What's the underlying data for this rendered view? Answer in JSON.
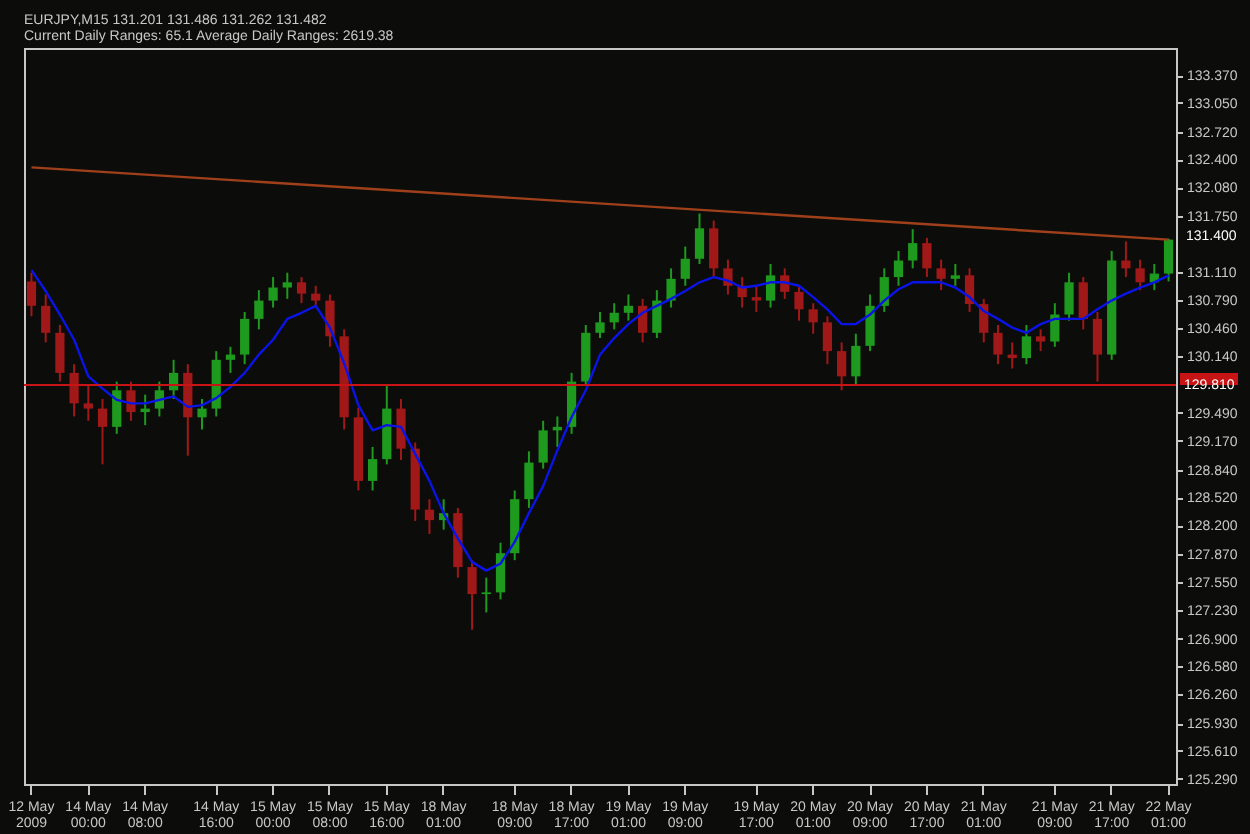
{
  "chart_data": {
    "type": "candlestick",
    "title": "EURJPY,M15  131.201 131.486 131.262 131.482",
    "subtitle": "Current Daily Ranges: 65.1   Average Daily Ranges: 2619.38",
    "categories": [
      "12 May 2009",
      null,
      null,
      null,
      "14 May 00:00",
      null,
      null,
      null,
      "14 May 08:00",
      null,
      null,
      null,
      null,
      "14 May 16:00",
      null,
      null,
      null,
      "15 May 00:00",
      null,
      null,
      null,
      "15 May 08:00",
      null,
      null,
      null,
      "15 May 16:00",
      null,
      null,
      null,
      "18 May 01:00",
      null,
      null,
      null,
      null,
      "18 May 09:00",
      null,
      null,
      null,
      "18 May 17:00",
      null,
      null,
      null,
      "19 May 01:00",
      null,
      null,
      null,
      "19 May 09:00",
      null,
      null,
      null,
      null,
      "19 May 17:00",
      null,
      null,
      null,
      "20 May 01:00",
      null,
      null,
      null,
      "20 May 09:00",
      null,
      null,
      null,
      "20 May 17:00",
      null,
      null,
      null,
      "21 May 01:00",
      null,
      null,
      null,
      null,
      "21 May 09:00",
      null,
      null,
      null,
      "21 May 17:00",
      null,
      null,
      null,
      "22 May 01:00"
    ],
    "ohlc": [
      [
        131.0,
        131.1,
        130.6,
        130.72
      ],
      [
        130.72,
        130.85,
        130.3,
        130.41
      ],
      [
        130.41,
        130.5,
        129.85,
        129.95
      ],
      [
        129.95,
        130.05,
        129.45,
        129.6
      ],
      [
        129.6,
        129.8,
        129.4,
        129.54
      ],
      [
        129.54,
        129.65,
        128.9,
        129.33
      ],
      [
        129.33,
        129.85,
        129.25,
        129.75
      ],
      [
        129.75,
        129.85,
        129.4,
        129.5
      ],
      [
        129.5,
        129.7,
        129.35,
        129.54
      ],
      [
        129.54,
        129.85,
        129.45,
        129.75
      ],
      [
        129.75,
        130.1,
        129.65,
        129.95
      ],
      [
        129.95,
        130.05,
        129.0,
        129.44
      ],
      [
        129.44,
        129.65,
        129.3,
        129.54
      ],
      [
        129.54,
        130.2,
        129.45,
        130.1
      ],
      [
        130.1,
        130.25,
        129.95,
        130.16
      ],
      [
        130.16,
        130.65,
        130.05,
        130.57
      ],
      [
        130.57,
        130.9,
        130.45,
        130.78
      ],
      [
        130.78,
        131.05,
        130.7,
        130.93
      ],
      [
        130.93,
        131.1,
        130.8,
        130.99
      ],
      [
        130.99,
        131.05,
        130.75,
        130.86
      ],
      [
        130.86,
        130.95,
        130.7,
        130.78
      ],
      [
        130.78,
        130.85,
        130.25,
        130.37
      ],
      [
        130.37,
        130.45,
        129.3,
        129.44
      ],
      [
        129.44,
        129.55,
        128.6,
        128.71
      ],
      [
        128.71,
        129.1,
        128.6,
        128.96
      ],
      [
        128.96,
        129.8,
        128.9,
        129.54
      ],
      [
        129.54,
        129.65,
        128.95,
        129.08
      ],
      [
        129.08,
        129.15,
        128.25,
        128.38
      ],
      [
        128.38,
        128.5,
        128.1,
        128.26
      ],
      [
        128.26,
        128.5,
        128.15,
        128.34
      ],
      [
        128.34,
        128.4,
        127.6,
        127.72
      ],
      [
        127.72,
        127.8,
        127.0,
        127.41
      ],
      [
        127.41,
        127.6,
        127.2,
        127.43
      ],
      [
        127.43,
        128.0,
        127.35,
        127.88
      ],
      [
        127.88,
        128.6,
        127.8,
        128.5
      ],
      [
        128.5,
        129.05,
        128.4,
        128.92
      ],
      [
        128.92,
        129.4,
        128.85,
        129.29
      ],
      [
        129.29,
        129.45,
        129.1,
        129.33
      ],
      [
        129.33,
        129.95,
        129.25,
        129.85
      ],
      [
        129.85,
        130.5,
        129.8,
        130.41
      ],
      [
        130.41,
        130.65,
        130.35,
        130.53
      ],
      [
        130.53,
        130.75,
        130.45,
        130.64
      ],
      [
        130.64,
        130.85,
        130.55,
        130.72
      ],
      [
        130.72,
        130.8,
        130.3,
        130.41
      ],
      [
        130.41,
        130.9,
        130.35,
        130.78
      ],
      [
        130.78,
        131.15,
        130.7,
        131.03
      ],
      [
        131.03,
        131.4,
        130.95,
        131.26
      ],
      [
        131.26,
        131.78,
        131.2,
        131.61
      ],
      [
        131.61,
        131.7,
        131.05,
        131.15
      ],
      [
        131.15,
        131.25,
        130.85,
        130.95
      ],
      [
        130.95,
        131.05,
        130.7,
        130.82
      ],
      [
        130.82,
        130.95,
        130.65,
        130.78
      ],
      [
        130.78,
        131.2,
        130.7,
        131.07
      ],
      [
        131.07,
        131.15,
        130.8,
        130.88
      ],
      [
        130.88,
        130.95,
        130.55,
        130.68
      ],
      [
        130.68,
        130.75,
        130.4,
        130.53
      ],
      [
        130.53,
        130.6,
        130.05,
        130.2
      ],
      [
        130.2,
        130.3,
        129.75,
        129.91
      ],
      [
        129.91,
        130.4,
        129.8,
        130.26
      ],
      [
        130.26,
        130.85,
        130.2,
        130.72
      ],
      [
        130.72,
        131.15,
        130.65,
        131.05
      ],
      [
        131.05,
        131.35,
        130.95,
        131.24
      ],
      [
        131.24,
        131.6,
        131.15,
        131.44
      ],
      [
        131.44,
        131.5,
        131.05,
        131.15
      ],
      [
        131.15,
        131.25,
        130.9,
        131.03
      ],
      [
        131.03,
        131.2,
        130.95,
        131.07
      ],
      [
        131.07,
        131.15,
        130.65,
        130.74
      ],
      [
        130.74,
        130.8,
        130.3,
        130.41
      ],
      [
        130.41,
        130.5,
        130.05,
        130.16
      ],
      [
        130.16,
        130.3,
        130.0,
        130.12
      ],
      [
        130.12,
        130.5,
        130.05,
        130.37
      ],
      [
        130.37,
        130.45,
        130.2,
        130.31
      ],
      [
        130.31,
        130.75,
        130.25,
        130.62
      ],
      [
        130.62,
        131.1,
        130.55,
        130.99
      ],
      [
        130.99,
        131.05,
        130.45,
        130.57
      ],
      [
        130.57,
        130.65,
        129.85,
        130.16
      ],
      [
        130.16,
        131.35,
        130.1,
        131.24
      ],
      [
        131.24,
        131.46,
        131.05,
        131.15
      ],
      [
        131.15,
        131.25,
        130.9,
        130.99
      ],
      [
        130.99,
        131.2,
        130.9,
        131.09
      ],
      [
        131.09,
        131.49,
        131.0,
        131.48
      ]
    ],
    "colors": [
      "#a01818",
      "#a01818",
      "#a01818",
      "#a01818",
      "#a01818",
      "#a01818",
      "#1e9a1e",
      "#a01818",
      "#1e9a1e",
      "#1e9a1e",
      "#1e9a1e",
      "#a01818",
      "#1e9a1e",
      "#1e9a1e",
      "#1e9a1e",
      "#1e9a1e",
      "#1e9a1e",
      "#1e9a1e",
      "#1e9a1e",
      "#a01818",
      "#a01818",
      "#a01818",
      "#a01818",
      "#a01818",
      "#1e9a1e",
      "#1e9a1e",
      "#a01818",
      "#a01818",
      "#a01818",
      "#1e9a1e",
      "#a01818",
      "#a01818",
      "#1e9a1e",
      "#1e9a1e",
      "#1e9a1e",
      "#1e9a1e",
      "#1e9a1e",
      "#1e9a1e",
      "#1e9a1e",
      "#1e9a1e",
      "#1e9a1e",
      "#1e9a1e",
      "#1e9a1e",
      "#a01818",
      "#1e9a1e",
      "#1e9a1e",
      "#1e9a1e",
      "#1e9a1e",
      "#a01818",
      "#a01818",
      "#a01818",
      "#a01818",
      "#1e9a1e",
      "#a01818",
      "#a01818",
      "#a01818",
      "#a01818",
      "#a01818",
      "#1e9a1e",
      "#1e9a1e",
      "#1e9a1e",
      "#1e9a1e",
      "#1e9a1e",
      "#a01818",
      "#a01818",
      "#1e9a1e",
      "#a01818",
      "#a01818",
      "#a01818",
      "#a01818",
      "#1e9a1e",
      "#a01818",
      "#1e9a1e",
      "#1e9a1e",
      "#a01818",
      "#a01818",
      "#1e9a1e",
      "#a01818",
      "#a01818",
      "#1e9a1e",
      "#1e9a1e"
    ],
    "series": [
      {
        "type": "line",
        "color": "#0a14e6",
        "values": [
          131.13,
          130.89,
          130.62,
          130.33,
          129.91,
          129.77,
          129.64,
          129.6,
          129.6,
          129.64,
          129.68,
          129.56,
          129.58,
          129.66,
          129.79,
          129.95,
          130.16,
          130.33,
          130.57,
          130.64,
          130.72,
          130.47,
          130.06,
          129.58,
          129.29,
          129.35,
          129.33,
          129.02,
          128.71,
          128.34,
          128.05,
          127.78,
          127.68,
          127.76,
          128.01,
          128.34,
          128.65,
          129.06,
          129.44,
          129.75,
          130.16,
          130.35,
          130.51,
          130.64,
          130.72,
          130.8,
          130.89,
          130.99,
          131.05,
          131.01,
          130.93,
          130.95,
          130.99,
          130.99,
          130.95,
          130.82,
          130.68,
          130.51,
          130.51,
          130.62,
          130.78,
          130.91,
          130.99,
          130.99,
          130.99,
          130.93,
          130.82,
          130.66,
          130.57,
          130.47,
          130.41,
          130.51,
          130.57,
          130.57,
          130.57,
          130.68,
          130.78,
          130.86,
          130.93,
          130.99,
          131.07
        ]
      },
      {
        "type": "line",
        "color": "#a0401a",
        "x": [
          "12 May 2009",
          "22 May 01:00"
        ],
        "values": [
          132.31,
          131.48
        ]
      }
    ],
    "ylim": [
      125.23,
      133.68
    ],
    "yticks": [
      {
        "value": 133.37,
        "label": "133.370"
      },
      {
        "value": 133.05,
        "label": "133.050"
      },
      {
        "value": 132.72,
        "label": "132.720"
      },
      {
        "value": 132.4,
        "label": "132.400"
      },
      {
        "value": 132.08,
        "label": "132.080"
      },
      {
        "value": 131.75,
        "label": "131.750"
      },
      {
        "value": 131.11,
        "label": "131.110"
      },
      {
        "value": 130.79,
        "label": "130.790"
      },
      {
        "value": 130.46,
        "label": "130.460"
      },
      {
        "value": 130.14,
        "label": "130.140"
      },
      {
        "value": 129.49,
        "label": "129.490"
      },
      {
        "value": 129.17,
        "label": "129.170"
      },
      {
        "value": 128.84,
        "label": "128.840"
      },
      {
        "value": 128.52,
        "label": "128.520"
      },
      {
        "value": 128.2,
        "label": "128.200"
      },
      {
        "value": 127.87,
        "label": "127.870"
      },
      {
        "value": 127.55,
        "label": "127.550"
      },
      {
        "value": 127.23,
        "label": "127.230"
      },
      {
        "value": 126.9,
        "label": "126.900"
      },
      {
        "value": 126.58,
        "label": "126.580"
      },
      {
        "value": 126.26,
        "label": "126.260"
      },
      {
        "value": 125.93,
        "label": "125.930"
      },
      {
        "value": 125.61,
        "label": "125.610"
      },
      {
        "value": 125.29,
        "label": "125.290"
      }
    ],
    "ref_lines": [
      {
        "axis": "y",
        "value": 129.81,
        "label": "129.810",
        "color": "#c81414"
      }
    ],
    "annotations": [
      "131.400"
    ]
  }
}
